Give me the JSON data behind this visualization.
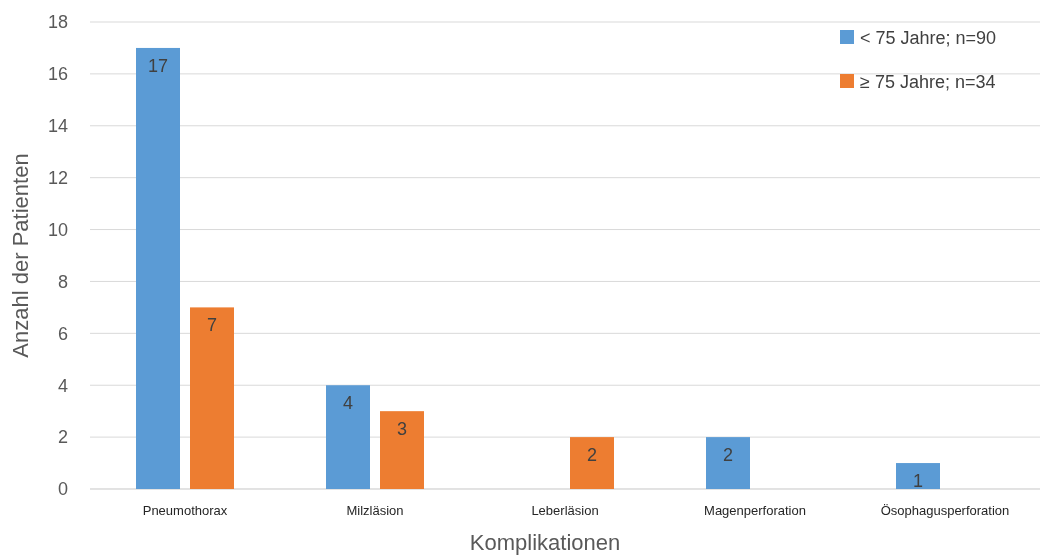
{
  "chart_data": {
    "type": "bar",
    "xlabel": "Komplikationen",
    "ylabel": "Anzahl der Patienten",
    "categories": [
      "Pneumothorax",
      "Milzläsion",
      "Leberläsion",
      "Magenperforation",
      "Ösophagusperforation"
    ],
    "series": [
      {
        "name": "< 75 Jahre; n=90",
        "color": "#5b9bd5",
        "values": [
          17,
          4,
          0,
          2,
          1
        ],
        "value_labels": [
          "17",
          "4",
          null,
          "2",
          "1"
        ]
      },
      {
        "name": "≥ 75 Jahre; n=34",
        "color": "#ed7d31",
        "values": [
          7,
          3,
          2,
          0,
          0
        ],
        "value_labels": [
          "7",
          "3",
          "2",
          null,
          null
        ]
      }
    ],
    "ylim": [
      0,
      18
    ],
    "yticks": [
      0,
      2,
      4,
      6,
      8,
      10,
      12,
      14,
      16,
      18
    ],
    "grid": "y",
    "legend": "top right"
  }
}
